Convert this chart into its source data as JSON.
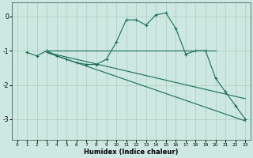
{
  "xlabel": "Humidex (Indice chaleur)",
  "xlim": [
    -0.5,
    23.5
  ],
  "ylim": [
    -3.6,
    0.4
  ],
  "xticks": [
    0,
    1,
    2,
    3,
    4,
    5,
    6,
    7,
    8,
    9,
    10,
    11,
    12,
    13,
    14,
    15,
    16,
    17,
    18,
    19,
    20,
    21,
    22,
    23
  ],
  "yticks": [
    0,
    -1,
    -2,
    -3
  ],
  "bg_color": "#cce8e0",
  "grid_color": "#aaccbb",
  "line_color": "#1a6b5a",
  "series": [
    {
      "x": [
        1,
        2,
        3,
        4,
        5,
        6,
        7,
        8,
        9,
        10,
        11,
        12,
        13,
        14,
        15,
        16,
        17,
        18,
        19,
        20,
        21,
        22,
        23
      ],
      "y": [
        -1.05,
        -1.15,
        -1.0,
        -1.15,
        -1.25,
        -1.35,
        -1.4,
        -1.4,
        -1.25,
        -0.75,
        -0.1,
        -0.1,
        -0.25,
        0.05,
        0.1,
        -0.35,
        -1.1,
        -1.0,
        -1.0,
        -1.8,
        -2.2,
        -2.6,
        -3.0
      ],
      "has_marker": true
    },
    {
      "x": [
        3,
        20
      ],
      "y": [
        -1.0,
        -1.0
      ],
      "has_marker": false
    },
    {
      "x": [
        3,
        23
      ],
      "y": [
        -1.05,
        -2.4
      ],
      "has_marker": false
    },
    {
      "x": [
        3,
        23
      ],
      "y": [
        -1.05,
        -3.05
      ],
      "has_marker": false
    }
  ]
}
